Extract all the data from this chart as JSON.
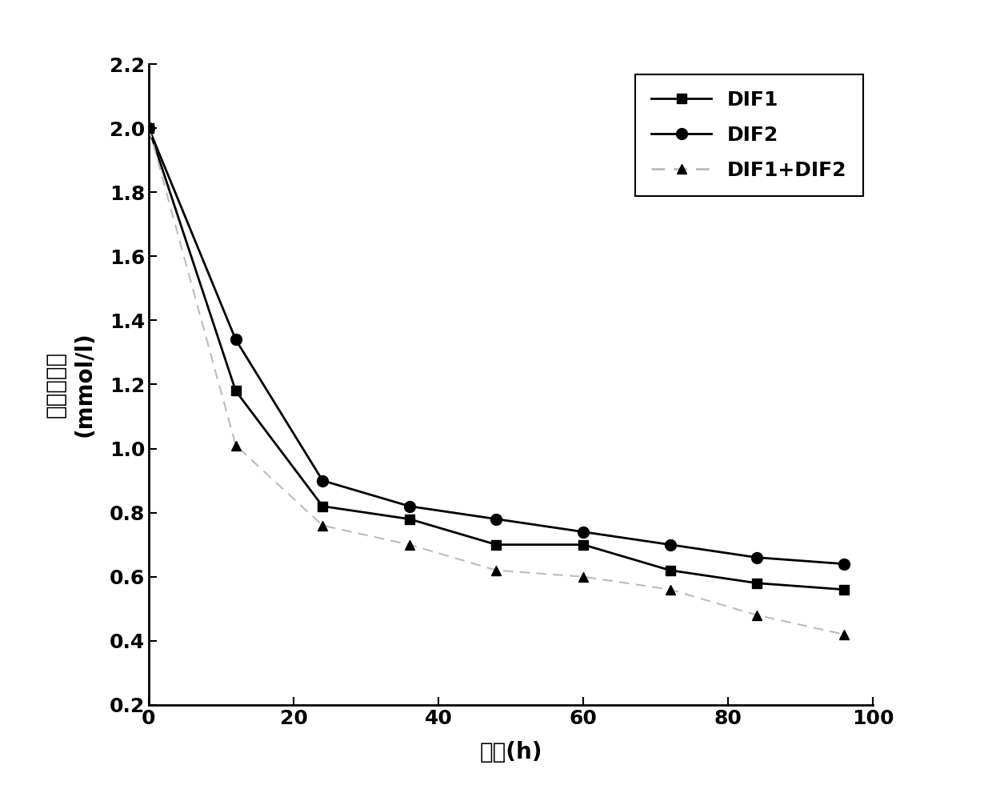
{
  "x": [
    0,
    12,
    24,
    36,
    48,
    60,
    72,
    84,
    96
  ],
  "DIF1": [
    2.0,
    1.18,
    0.82,
    0.78,
    0.7,
    0.7,
    0.62,
    0.58,
    0.56
  ],
  "DIF2": [
    2.0,
    1.34,
    0.9,
    0.82,
    0.78,
    0.74,
    0.7,
    0.66,
    0.64
  ],
  "DIF1_DIF2": [
    2.0,
    1.01,
    0.76,
    0.7,
    0.62,
    0.6,
    0.56,
    0.48,
    0.42
  ],
  "xlabel": "时间(h)",
  "ylabel_line1": "六价铬浓度",
  "ylabel_line2": "(mmol/l)",
  "xlim": [
    0,
    100
  ],
  "ylim": [
    0.2,
    2.2
  ],
  "xticks": [
    0,
    20,
    40,
    60,
    80,
    100
  ],
  "yticks": [
    0.2,
    0.4,
    0.6,
    0.8,
    1.0,
    1.2,
    1.4,
    1.6,
    1.8,
    2.0,
    2.2
  ],
  "legend_labels": [
    "DIF1",
    "DIF2",
    "DIF1+DIF2"
  ],
  "line_color_DIF1": "#000000",
  "line_color_DIF2": "#000000",
  "line_color_combined": "#bbbbbb",
  "background_color": "#ffffff",
  "fontsize_axis_label": 20,
  "fontsize_tick": 18,
  "fontsize_legend": 18
}
